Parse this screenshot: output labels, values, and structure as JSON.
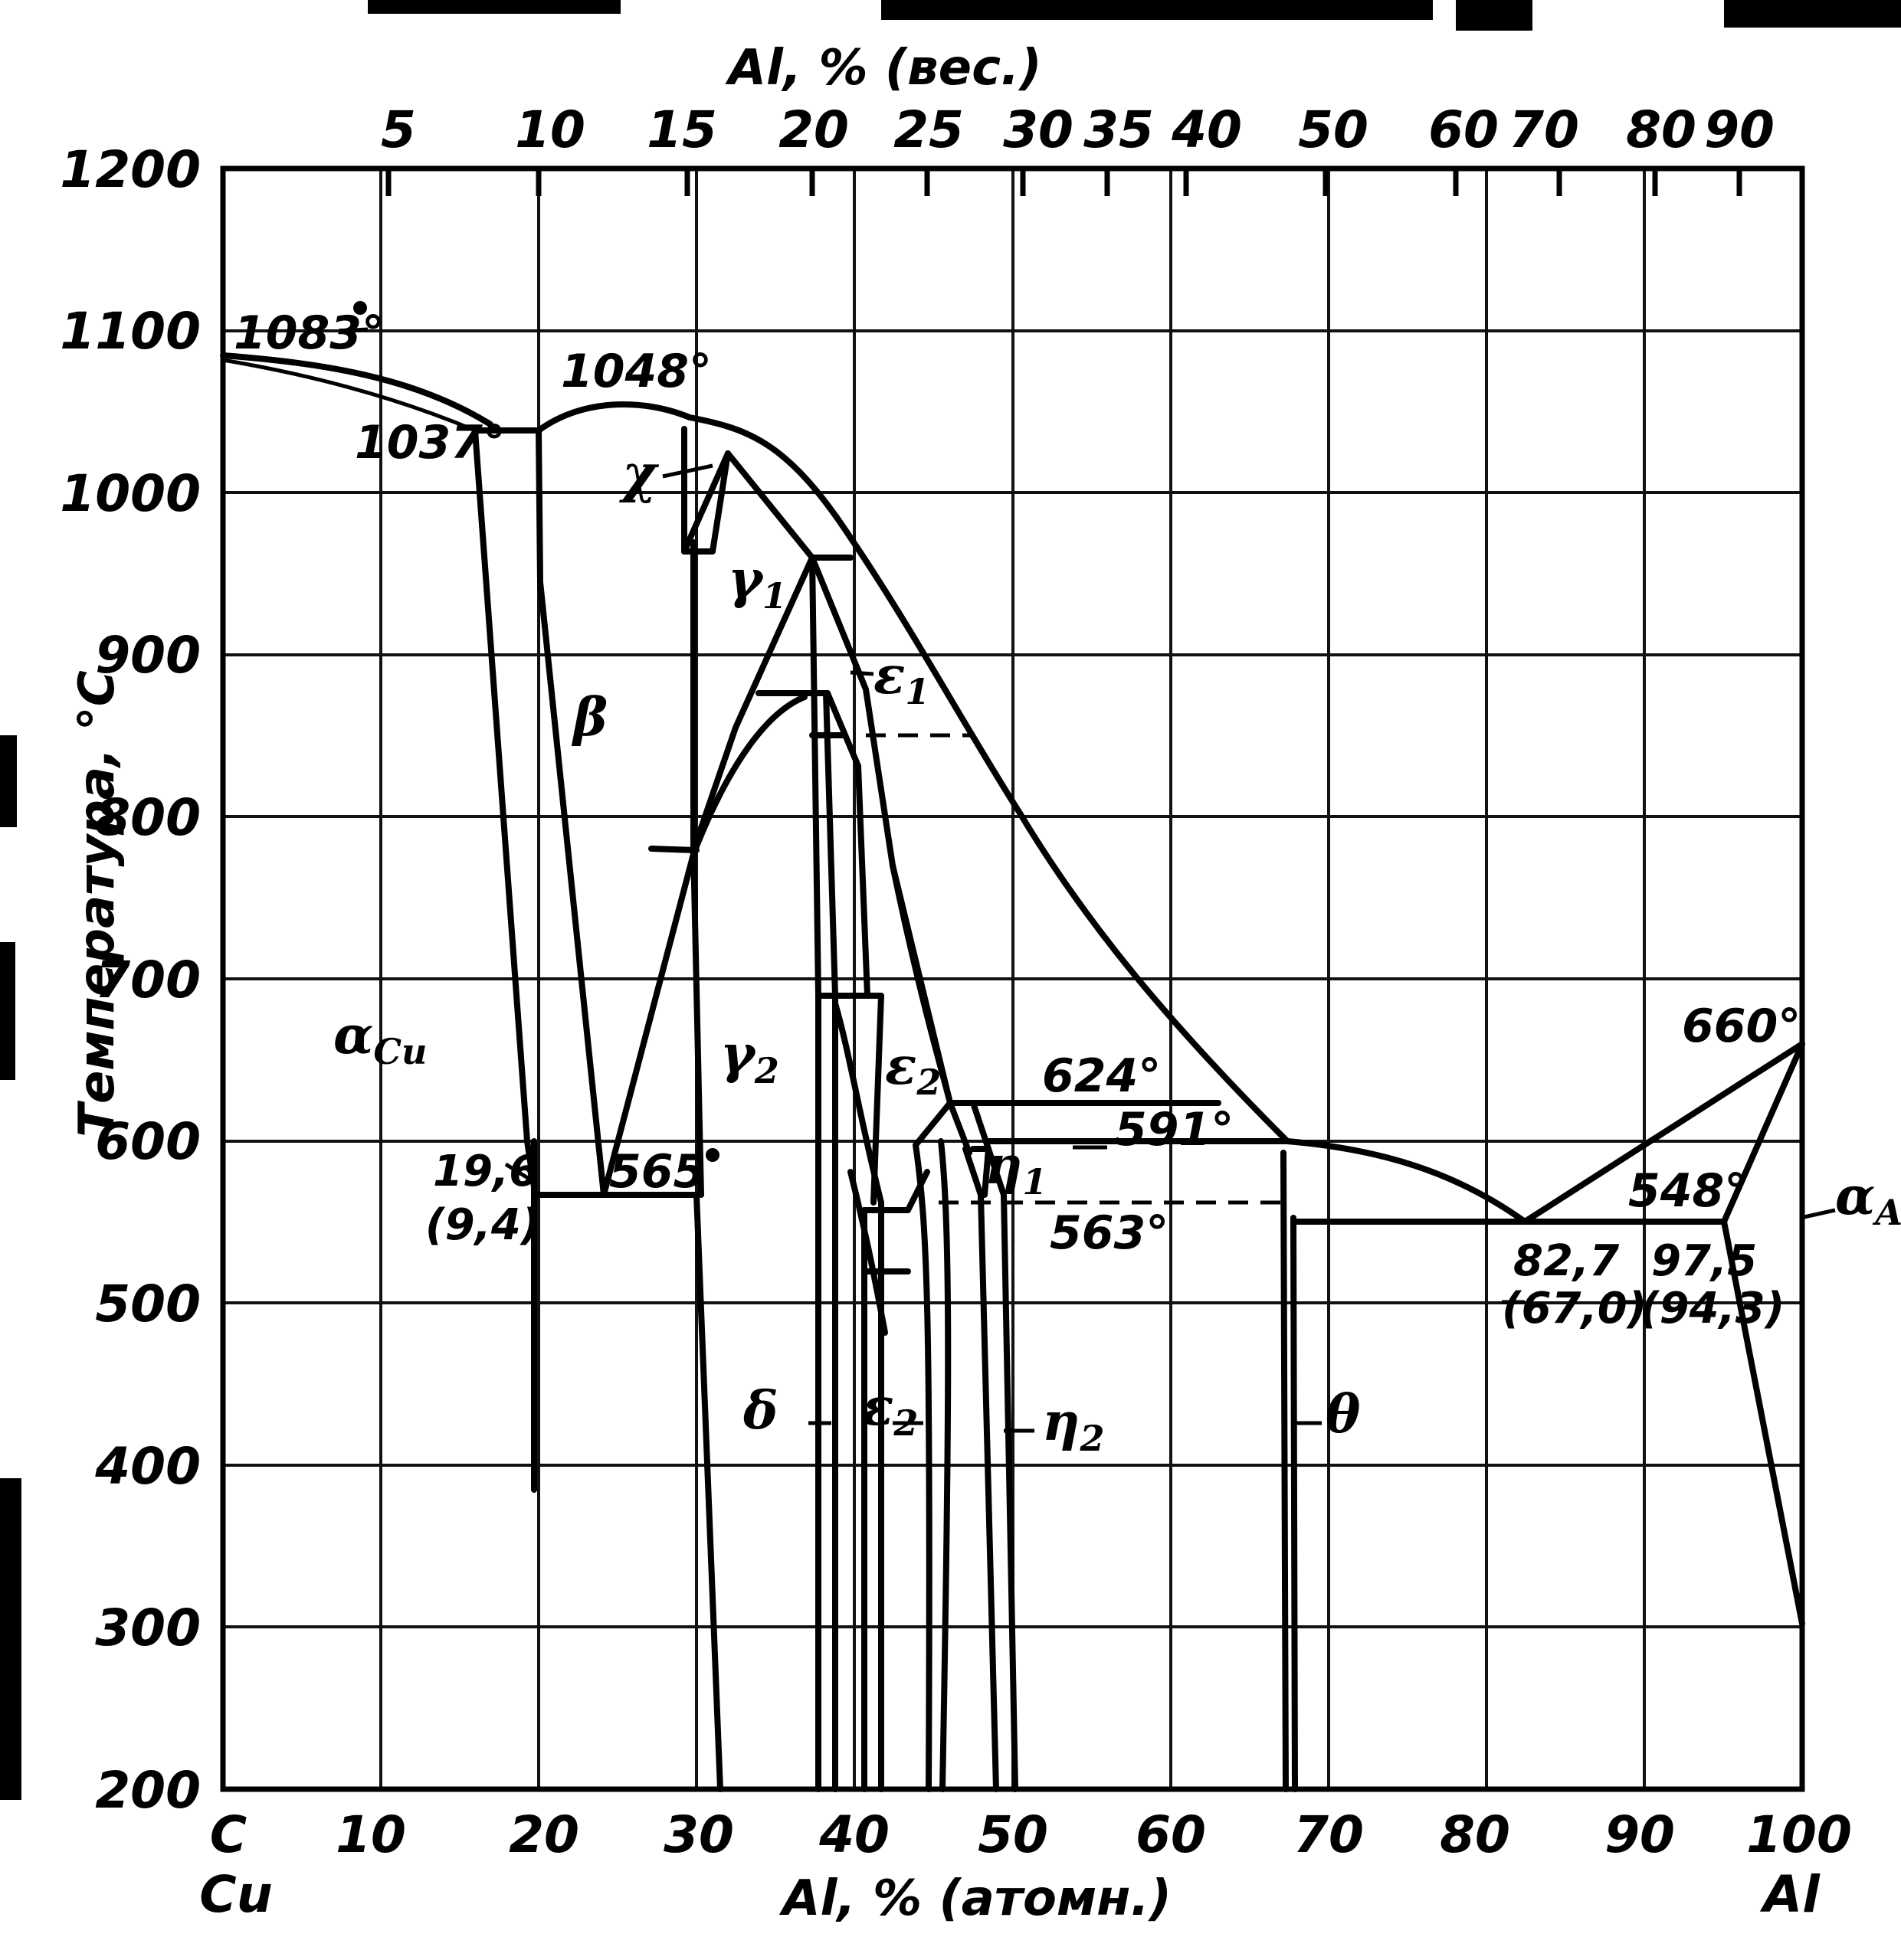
{
  "chart_data": {
    "type": "phase-diagram",
    "system": "Cu-Al",
    "y_axis": {
      "label": "Температура, °С",
      "ticks": [
        "1200",
        "1100",
        "1000",
        "900",
        "800",
        "700",
        "600",
        "500",
        "400",
        "300",
        "200"
      ],
      "range": [
        200,
        1200
      ]
    },
    "x_axis_bottom": {
      "label": "Al, % (атомн.)",
      "ticks": [
        "C",
        "10",
        "20",
        "30",
        "40",
        "50",
        "60",
        "70",
        "80",
        "90",
        "100"
      ],
      "end_labels": [
        "Cu",
        "Al"
      ],
      "range": [
        0,
        100
      ]
    },
    "x_axis_top": {
      "label": "Al, % (вес.)",
      "ticks": [
        "5",
        "10",
        "15",
        "20",
        "25",
        "30",
        "35",
        "40",
        "50",
        "60",
        "70",
        "80",
        "90"
      ]
    },
    "temperature_labels": {
      "t1083": "1083°",
      "t1037": "1037°",
      "t1048": "1048°",
      "t624": "624°",
      "t591": "591°",
      "t565": "565",
      "t563": "563°",
      "t660": "660°",
      "t548": "548°"
    },
    "composition_labels": {
      "c196": "19,6",
      "c94": "(9,4)",
      "c827": "82,7",
      "c670": "(67,0)",
      "c975": "97,5",
      "c943": "(94,3)"
    },
    "phases": {
      "alpha_cu": {
        "base": "α",
        "sub": "Cu"
      },
      "alpha_al": {
        "base": "α",
        "sub": "Al"
      },
      "beta": "β",
      "chi": "χ",
      "gamma1": {
        "base": "γ",
        "sub": "1"
      },
      "gamma2": {
        "base": "γ",
        "sub": "2"
      },
      "delta": "δ",
      "eps1": {
        "base": "ε",
        "sub": "1"
      },
      "eps2_upper": {
        "base": "ε",
        "sub": "2"
      },
      "eps2_lower": {
        "base": "ε",
        "sub": "2"
      },
      "eta1": {
        "base": "η",
        "sub": "1"
      },
      "eta2": {
        "base": "η",
        "sub": "2"
      },
      "theta": "θ"
    },
    "invariants": [
      {
        "temperature": 1083,
        "composition_at": 0,
        "kind": "melting Cu"
      },
      {
        "temperature": 1037,
        "composition_at": [
          16.5,
          19.6
        ]
      },
      {
        "temperature": 1048,
        "kind": "β maximum"
      },
      {
        "temperature": 565,
        "composition_at": [
          19.6,
          24.5,
          30
        ]
      },
      {
        "temperature": 624,
        "composition_at": [
          46,
          65
        ]
      },
      {
        "temperature": 591,
        "composition_at": [
          50,
          67
        ]
      },
      {
        "temperature": 563,
        "composition_at": [
          45,
          67
        ],
        "line": "dashed"
      },
      {
        "temperature": 548,
        "composition_at": [
          67.5,
          82.7,
          97.5
        ]
      },
      {
        "temperature": 660,
        "composition_at": 100,
        "kind": "melting Al"
      }
    ],
    "grid": true
  }
}
